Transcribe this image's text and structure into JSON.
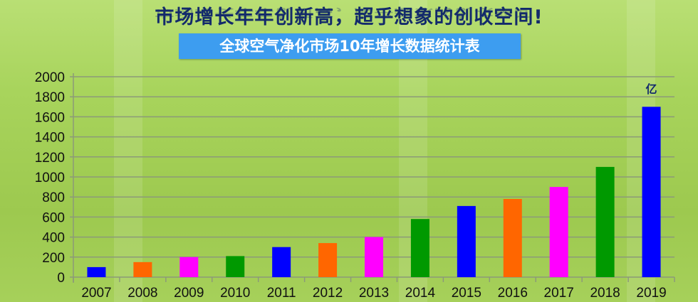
{
  "headline": "市场增长年年创新高，超乎想象的创收空间!",
  "chart_data": {
    "type": "bar",
    "title": "全球空气净化市场10年增长数据统计表",
    "unit_label": "亿",
    "categories": [
      "2007",
      "2008",
      "2009",
      "2010",
      "2011",
      "2012",
      "2013",
      "2014",
      "2015",
      "2016",
      "2017",
      "2018",
      "2019"
    ],
    "values": [
      100,
      150,
      200,
      210,
      300,
      340,
      400,
      580,
      710,
      780,
      900,
      1100,
      1700
    ],
    "bar_colors": [
      "#0000ff",
      "#ff6600",
      "#ff00ff",
      "#009900",
      "#0000ff",
      "#ff6600",
      "#ff00ff",
      "#009900",
      "#0000ff",
      "#ff6600",
      "#ff00ff",
      "#009900",
      "#0000ff"
    ],
    "ylim": [
      0,
      2000
    ],
    "yticks": [
      0,
      200,
      400,
      600,
      800,
      1000,
      1200,
      1400,
      1600,
      1800,
      2000
    ],
    "grid": true,
    "xlabel": "",
    "ylabel": ""
  }
}
